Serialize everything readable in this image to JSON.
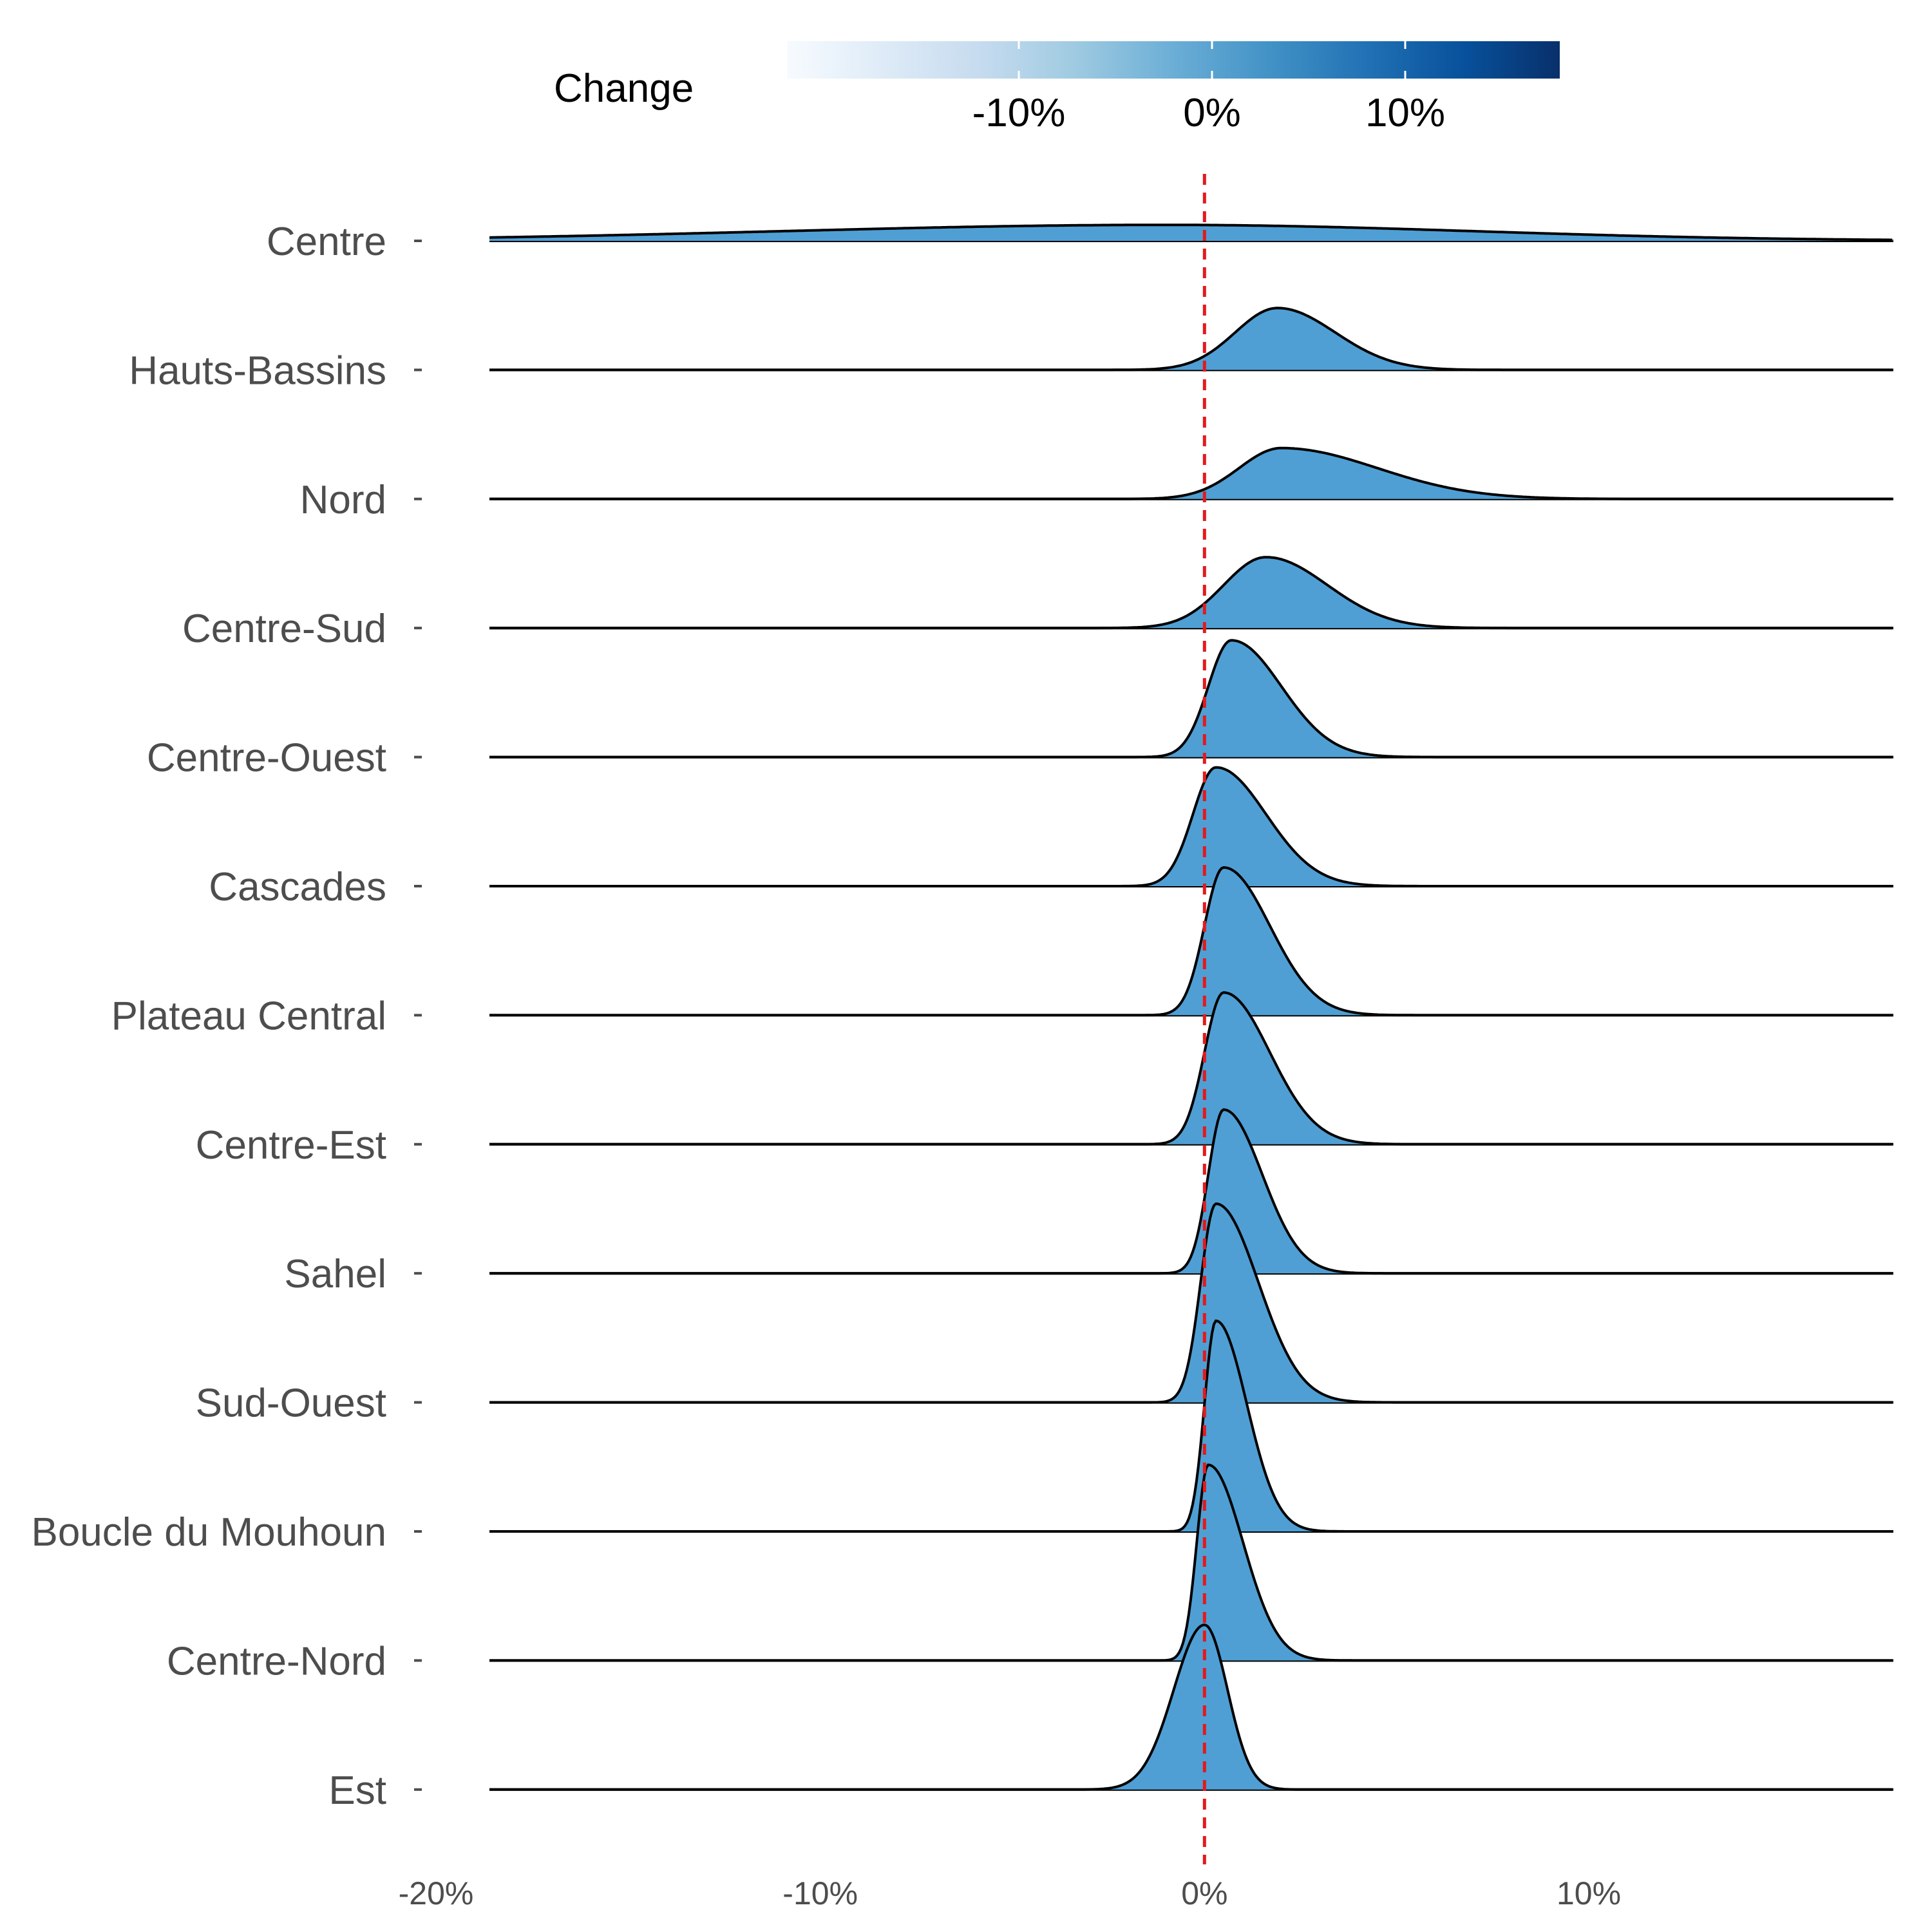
{
  "chart_data": {
    "type": "ridgeline",
    "x_range": [
      -0.2,
      0.1
    ],
    "x_ticks": [
      {
        "value": -0.2,
        "label": "-20%"
      },
      {
        "value": -0.1,
        "label": "-10%"
      },
      {
        "value": 0.0,
        "label": "0%"
      },
      {
        "value": 0.1,
        "label": "10%"
      }
    ],
    "reference_line": {
      "x": 0.0,
      "color": "#e31a1c",
      "style": "dashed"
    },
    "legend": {
      "title": "Change",
      "placement": "top",
      "range": [
        -0.22,
        0.18
      ],
      "ticks": [
        {
          "value": -0.1,
          "label": "-10%"
        },
        {
          "value": 0.0,
          "label": "0%"
        },
        {
          "value": 0.1,
          "label": "10%"
        }
      ],
      "colors": [
        "#f7fbff",
        "#deebf7",
        "#c6dbef",
        "#9ecae1",
        "#6baed6",
        "#4292c6",
        "#2171b5",
        "#08519c",
        "#08306b"
      ]
    },
    "fill_color": "#4f9fd4",
    "categories": [
      "Centre",
      "Hauts-Bassins",
      "Nord",
      "Centre-Sud",
      "Centre-Ouest",
      "Cascades",
      "Plateau Central",
      "Centre-Est",
      "Sahel",
      "Sud-Ouest",
      "Boucle du Mouhoun",
      "Centre-Nord",
      "Est"
    ],
    "series": [
      {
        "name": "Centre",
        "peak_x": -0.01,
        "peak_height": 0.16,
        "spread_left": 0.1,
        "spread_right": 0.08
      },
      {
        "name": "Hauts-Bassins",
        "peak_x": 0.019,
        "peak_height": 0.62,
        "spread_left": 0.011,
        "spread_right": 0.015
      },
      {
        "name": "Nord",
        "peak_x": 0.02,
        "peak_height": 0.51,
        "spread_left": 0.011,
        "spread_right": 0.025
      },
      {
        "name": "Centre-Sud",
        "peak_x": 0.016,
        "peak_height": 0.71,
        "spread_left": 0.011,
        "spread_right": 0.016
      },
      {
        "name": "Centre-Ouest",
        "peak_x": 0.007,
        "peak_height": 1.17,
        "spread_left": 0.006,
        "spread_right": 0.013
      },
      {
        "name": "Cascades",
        "peak_x": 0.003,
        "peak_height": 1.19,
        "spread_left": 0.006,
        "spread_right": 0.013
      },
      {
        "name": "Plateau Central",
        "peak_x": 0.005,
        "peak_height": 1.48,
        "spread_left": 0.005,
        "spread_right": 0.012
      },
      {
        "name": "Centre-Est",
        "peak_x": 0.005,
        "peak_height": 1.52,
        "spread_left": 0.005,
        "spread_right": 0.012
      },
      {
        "name": "Sahel",
        "peak_x": 0.005,
        "peak_height": 1.64,
        "spread_left": 0.004,
        "spread_right": 0.01
      },
      {
        "name": "Sud-Ouest",
        "peak_x": 0.003,
        "peak_height": 1.99,
        "spread_left": 0.004,
        "spread_right": 0.011
      },
      {
        "name": "Boucle du Mouhoun",
        "peak_x": 0.003,
        "peak_height": 2.11,
        "spread_left": 0.003,
        "spread_right": 0.008
      },
      {
        "name": "Centre-Nord",
        "peak_x": 0.001,
        "peak_height": 1.96,
        "spread_left": 0.003,
        "spread_right": 0.009
      },
      {
        "name": "Est",
        "peak_x": 0.0,
        "peak_height": 1.65,
        "spread_left": 0.008,
        "spread_right": 0.006
      }
    ]
  }
}
